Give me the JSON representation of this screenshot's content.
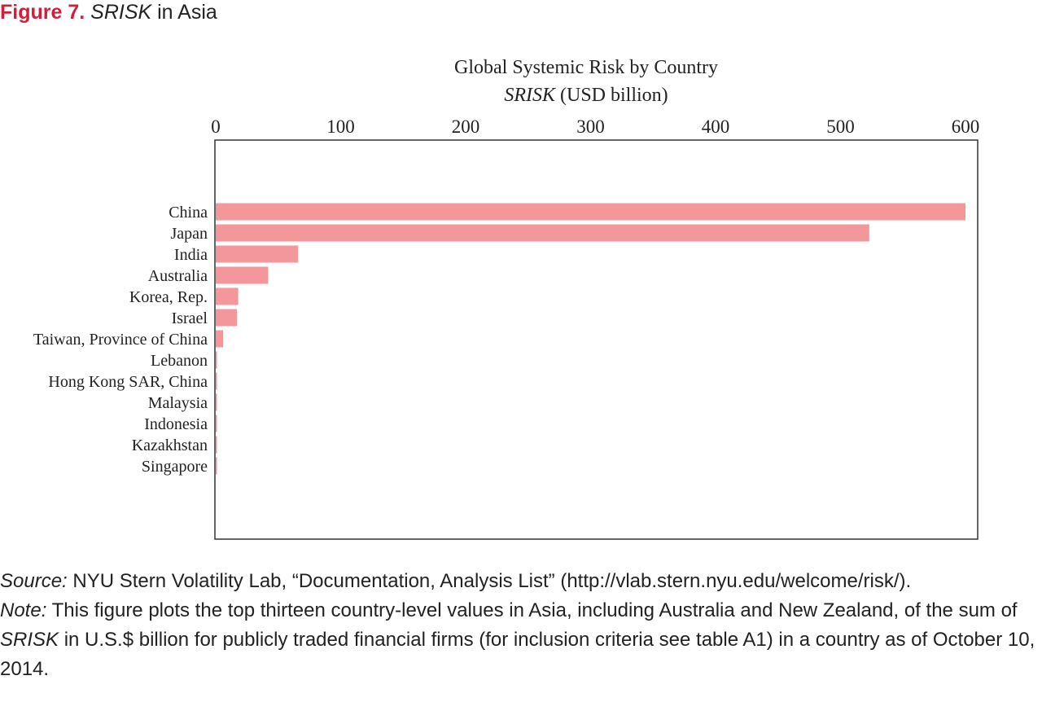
{
  "figure": {
    "label": "Figure 7.",
    "title_italic": "SRISK",
    "title_rest": " in Asia"
  },
  "chart_data": {
    "type": "bar",
    "orientation": "horizontal",
    "title": "Global Systemic Risk by Country",
    "subtitle_italic": "SRISK",
    "subtitle_rest": " (USD billion)",
    "xlim": [
      0,
      600
    ],
    "ticks": [
      "0",
      "100",
      "200",
      "300",
      "400",
      "500",
      "600"
    ],
    "tick_values": [
      0,
      100,
      200,
      300,
      400,
      500,
      600
    ],
    "axis_position": "top",
    "grid": false,
    "bar_color": "#f4979b",
    "categories": [
      "China",
      "Japan",
      "India",
      "Australia",
      "Korea, Rep.",
      "Israel",
      "Taiwan, Province of China",
      "Lebanon",
      "Hong Kong SAR, China",
      "Malaysia",
      "Indonesia",
      "Kazakhstan",
      "Singapore"
    ],
    "values": [
      600,
      523,
      66,
      42,
      18,
      17,
      6,
      1,
      1,
      0.5,
      0.5,
      0.3,
      0.3
    ]
  },
  "footer": {
    "source_label": "Source:",
    "source_text": " NYU Stern Volatility Lab, “Documentation, Analysis List” (http://vlab.stern.nyu.edu/welcome/risk/).",
    "note_label": "Note:",
    "note_text_1": " This figure plots the top thirteen country-level values in Asia, including Australia and New Zealand, of the sum of ",
    "note_italic": "SRISK",
    "note_text_2": " in U.S.$ billion for publicly traded financial firms (for inclusion criteria see table A1) in a country as of October 10, 2014."
  }
}
